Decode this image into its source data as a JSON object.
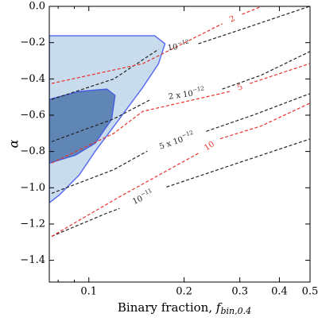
{
  "chart_data": {
    "type": "contour",
    "x_label": "Binary fraction, ",
    "x_label_symbol": "f",
    "x_label_subscript": "bin,0.4",
    "y_label": "α",
    "xscale": "log",
    "xlim": [
      0.075,
      0.5
    ],
    "ylim": [
      -1.52,
      0
    ],
    "xticks": [
      0.1,
      0.2,
      0.3,
      0.4,
      0.5
    ],
    "xminorticks": [
      0.08,
      0.09
    ],
    "yticks": [
      {
        "value": 0,
        "label": "0.0"
      },
      {
        "value": -0.2,
        "label": "−0.2"
      },
      {
        "value": -0.4,
        "label": "−0.4"
      },
      {
        "value": -0.6,
        "label": "−0.6"
      },
      {
        "value": -0.8,
        "label": "−0.8"
      },
      {
        "value": -1.0,
        "label": "−1.0"
      },
      {
        "value": -1.2,
        "label": "−1.2"
      },
      {
        "value": -1.4,
        "label": "−1.4"
      }
    ],
    "regions": [
      {
        "color": "#c9dcee",
        "edge": "#5a6ff0",
        "x": [
          0.075,
          0.0932,
          0.1246,
          0.1615,
          0.174,
          0.166,
          0.148,
          0.1246,
          0.1048,
          0.0932,
          0.0807,
          0.075
        ],
        "y": [
          -0.162,
          -0.162,
          -0.162,
          -0.162,
          -0.206,
          -0.316,
          -0.447,
          -0.623,
          -0.798,
          -0.93,
          -1.04,
          -1.083
        ]
      },
      {
        "color": "#5f86b5",
        "edge": "#4a5fe0",
        "x": [
          0.075,
          0.0932,
          0.114,
          0.121,
          0.118,
          0.1048,
          0.0908,
          0.075
        ],
        "y": [
          -0.513,
          -0.469,
          -0.456,
          -0.491,
          -0.623,
          -0.754,
          -0.82,
          -0.864
        ]
      }
    ],
    "contours": [
      {
        "label": "10",
        "label_sup": "−12",
        "color": "#222222",
        "x": [
          0.0763,
          0.12,
          0.166,
          null,
          0.222,
          0.3,
          0.498
        ],
        "y": [
          -0.513,
          -0.4,
          -0.237,
          null,
          -0.206,
          -0.13,
          0.0
        ]
      },
      {
        "label": "2 x 10",
        "label_sup": "−12",
        "color": "#222222",
        "x": [
          0.0763,
          0.12,
          0.157,
          null,
          0.264,
          0.35,
          0.498
        ],
        "y": [
          -0.746,
          -0.62,
          -0.513,
          null,
          -0.456,
          -0.38,
          -0.25
        ]
      },
      {
        "label": "5 x 10",
        "label_sup": "−12",
        "color": "#222222",
        "x": [
          0.0763,
          0.12,
          0.153,
          null,
          0.235,
          0.33,
          0.498
        ],
        "y": [
          -1.031,
          -0.9,
          -0.798,
          null,
          -0.689,
          -0.6,
          -0.482
        ]
      },
      {
        "label": "10",
        "label_sup": "−11",
        "color": "#222222",
        "x": [
          0.0763,
          0.114,
          0.125,
          null,
          0.176,
          0.3,
          0.498
        ],
        "y": [
          -1.268,
          -1.14,
          -1.114,
          null,
          -0.996,
          -0.86,
          -0.732
        ]
      },
      {
        "label": "2",
        "color": "#e8322a",
        "x": [
          0.0763,
          0.148,
          0.222,
          0.264,
          null,
          0.305,
          0.352
        ],
        "y": [
          -0.425,
          -0.316,
          -0.162,
          -0.096,
          null,
          -0.044,
          0.0
        ]
      },
      {
        "label": "5",
        "color": "#e8322a",
        "x": [
          0.0763,
          0.12,
          0.148,
          0.2795,
          null,
          0.3225,
          0.498
        ],
        "y": [
          -0.864,
          -0.7,
          -0.579,
          -0.469,
          null,
          -0.425,
          -0.316
        ]
      },
      {
        "label": "10",
        "color": "#e8322a",
        "x": [
          0.0763,
          0.125,
          0.222,
          null,
          0.26,
          0.35,
          0.498
        ],
        "y": [
          -1.268,
          -1.05,
          -0.81,
          null,
          -0.73,
          -0.66,
          -0.535
        ]
      }
    ]
  }
}
